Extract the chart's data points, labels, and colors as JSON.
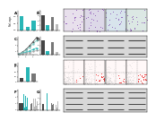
{
  "bg_color": "#ffffff",
  "panel_A": {
    "values": [
      1.0,
      0.25,
      0.7
    ],
    "bar_colors": [
      "#29b6b6",
      "#29b6b6",
      "#29b6b6"
    ],
    "ylim": [
      0,
      1.4
    ],
    "ylabel": "Relative expression"
  },
  "panel_B": {
    "values": [
      3.2,
      1.0,
      2.8,
      1.3
    ],
    "bar_colors": [
      "#444444",
      "#29b6b6",
      "#777777",
      "#bbbbbb"
    ],
    "ylim": [
      0,
      4.0
    ]
  },
  "panel_C": {
    "lines": [
      {
        "y": [
          0.5,
          0.85,
          1.3,
          1.9,
          2.6,
          3.3
        ],
        "color": "#444444"
      },
      {
        "y": [
          0.5,
          0.65,
          0.85,
          1.05,
          1.3,
          1.55
        ],
        "color": "#29b6b6"
      },
      {
        "y": [
          0.5,
          0.78,
          1.15,
          1.65,
          2.2,
          2.85
        ],
        "color": "#80cbc4"
      },
      {
        "y": [
          0.5,
          0.55,
          0.65,
          0.78,
          0.95,
          1.1
        ],
        "color": "#aaaaaa"
      }
    ],
    "x": [
      0,
      1,
      2,
      3,
      4,
      5
    ]
  },
  "panel_D": {
    "values": [
      3.1,
      0.9,
      2.7,
      0.7
    ],
    "bar_colors": [
      "#444444",
      "#29b6b6",
      "#777777",
      "#bbbbbb"
    ],
    "ylim": [
      0,
      3.8
    ]
  },
  "panel_E": {
    "values": [
      8.0,
      28.0,
      16.0
    ],
    "bar_colors": [
      "#444444",
      "#29b6b6",
      "#777777"
    ],
    "ylim": [
      0,
      38
    ]
  },
  "panel_F": {
    "n_cats": 4,
    "n_proteins": 5,
    "bar_colors": [
      "#444444",
      "#29b6b6",
      "#777777",
      "#bbbbbb"
    ],
    "values": [
      [
        1.0,
        2.5,
        1.3,
        1.8
      ],
      [
        1.0,
        0.4,
        0.85,
        0.5
      ],
      [
        1.0,
        2.2,
        1.1,
        1.7
      ],
      [
        1.0,
        0.45,
        0.9,
        0.6
      ],
      [
        1.0,
        1.9,
        1.05,
        1.4
      ]
    ],
    "ylim": [
      0,
      3.2
    ]
  },
  "panel_G": {
    "n_cats": 4,
    "n_proteins": 3,
    "bar_colors": [
      "#444444",
      "#29b6b6",
      "#777777",
      "#bbbbbb"
    ],
    "values": [
      [
        1.0,
        2.8,
        1.2,
        0.8
      ],
      [
        1.0,
        0.35,
        0.8,
        0.45
      ],
      [
        1.0,
        2.1,
        1.0,
        1.5
      ]
    ],
    "ylim": [
      0,
      3.5
    ]
  },
  "transwell_colors": [
    "#e8e0ec",
    "#ddd8e8",
    "#d8e4ec",
    "#dce8e4"
  ],
  "flow_bg": "#fff8f8",
  "wb_bg": "#d8d8d8",
  "wb_band_color": "#555555"
}
